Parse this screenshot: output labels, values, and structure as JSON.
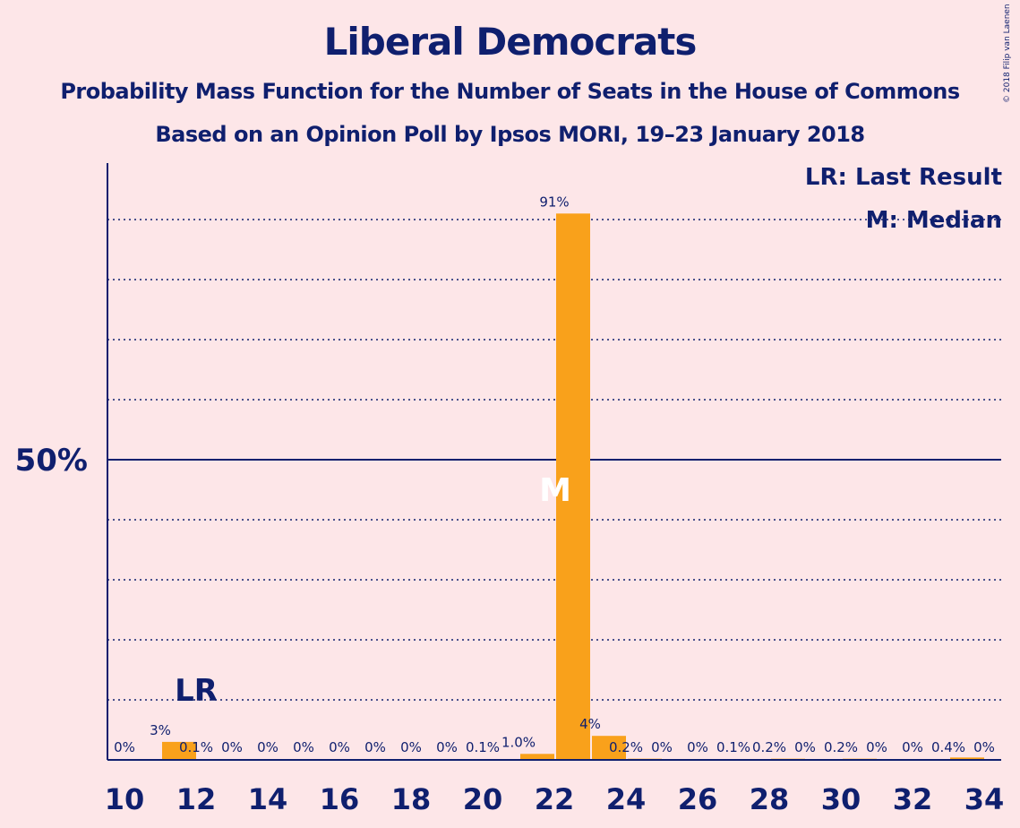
{
  "title": "Liberal Democrats",
  "subtitle_1": "Probability Mass Function for the Number of Seats in the House of Commons",
  "subtitle_2": "Based on an Opinion Poll by Ipsos MORI, 19–23 January 2018",
  "copyright": "© 2018 Filip van Laenen",
  "legend": {
    "last_result": "LR: Last Result",
    "median": "M: Median"
  },
  "colors": {
    "background": "#fde6e8",
    "bar": "#f9a11b",
    "axis": "#0f1f6e",
    "text": "#0f1f6e"
  },
  "chart_data": {
    "type": "bar",
    "title": "Liberal Democrats",
    "x": [
      10,
      11,
      12,
      13,
      14,
      15,
      16,
      17,
      18,
      19,
      20,
      21,
      22,
      23,
      24,
      25,
      26,
      27,
      28,
      29,
      30,
      31,
      32,
      33,
      34
    ],
    "values": [
      0,
      3,
      0.1,
      0,
      0,
      0,
      0,
      0,
      0,
      0,
      0.1,
      1.0,
      91,
      4,
      0.2,
      0,
      0,
      0.1,
      0.2,
      0,
      0.2,
      0,
      0,
      0.4,
      0
    ],
    "labels": [
      "0%",
      "3%",
      "0.1%",
      "0%",
      "0%",
      "0%",
      "0%",
      "0%",
      "0%",
      "0%",
      "0.1%",
      "1.0%",
      "91%",
      "4%",
      "0.2%",
      "0%",
      "0%",
      "0.1%",
      "0.2%",
      "0%",
      "0.2%",
      "0%",
      "0%",
      "0.4%",
      "0%"
    ],
    "x_ticks": [
      "10",
      "12",
      "14",
      "16",
      "18",
      "20",
      "22",
      "24",
      "26",
      "28",
      "30",
      "32",
      "34"
    ],
    "y_tick_label": "50%",
    "ylim": [
      0,
      99
    ],
    "gridlines": [
      10,
      20,
      30,
      40,
      60,
      70,
      80,
      90
    ],
    "major_gridline": 50,
    "last_result_seat": 12,
    "last_result_label": "LR",
    "median_seat": 22,
    "median_label": "M"
  }
}
